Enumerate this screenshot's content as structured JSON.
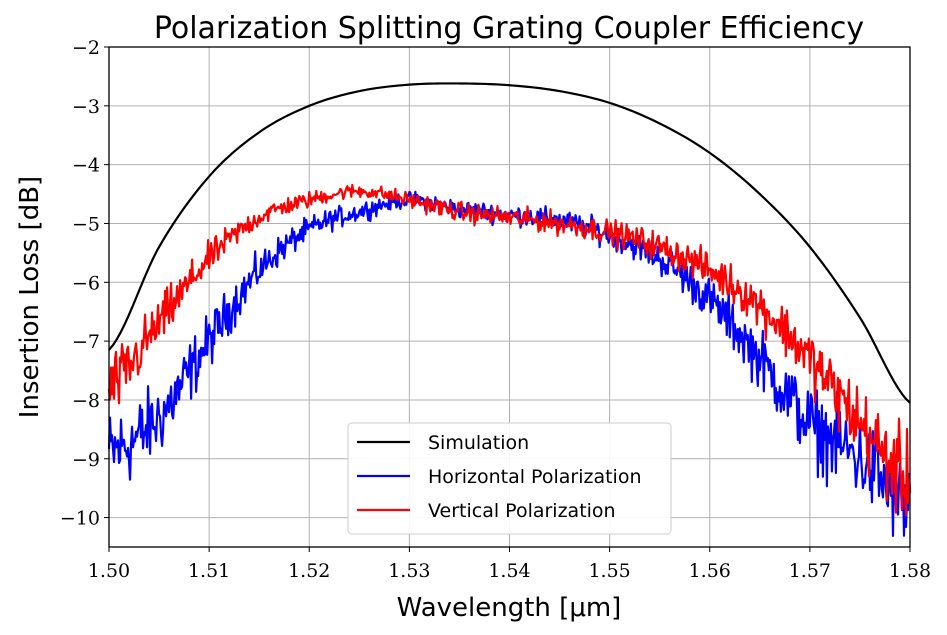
{
  "chart_data": {
    "type": "line",
    "title": "Polarization Splitting Grating Coupler Efficiency",
    "xlabel": "Wavelength [μm]",
    "ylabel": "Insertion Loss [dB]",
    "xlim": [
      1.5,
      1.58
    ],
    "ylim": [
      -10.5,
      -2
    ],
    "xticks": [
      1.5,
      1.51,
      1.52,
      1.53,
      1.54,
      1.55,
      1.56,
      1.57,
      1.58
    ],
    "xtick_labels": [
      "1.50",
      "1.51",
      "1.52",
      "1.53",
      "1.54",
      "1.55",
      "1.56",
      "1.57",
      "1.58"
    ],
    "yticks": [
      -2,
      -3,
      -4,
      -5,
      -6,
      -7,
      -8,
      -9,
      -10
    ],
    "ytick_labels": [
      "−2",
      "−3",
      "−4",
      "−5",
      "−6",
      "−7",
      "−8",
      "−9",
      "−10"
    ],
    "grid": true,
    "legend_position": "lower center",
    "series": [
      {
        "name": "Simulation",
        "color": "#000000",
        "x": [
          1.5,
          1.505,
          1.51,
          1.515,
          1.52,
          1.525,
          1.53,
          1.535,
          1.54,
          1.545,
          1.55,
          1.555,
          1.56,
          1.565,
          1.57,
          1.575,
          1.58
        ],
        "y": [
          -7.15,
          -5.4,
          -4.2,
          -3.45,
          -3.0,
          -2.75,
          -2.64,
          -2.62,
          -2.65,
          -2.75,
          -2.95,
          -3.3,
          -3.8,
          -4.5,
          -5.4,
          -6.6,
          -8.05
        ]
      },
      {
        "name": "Horizontal Polarization",
        "color": "#0000ff",
        "x": [
          1.5,
          1.505,
          1.51,
          1.515,
          1.52,
          1.525,
          1.53,
          1.535,
          1.54,
          1.545,
          1.55,
          1.555,
          1.56,
          1.565,
          1.57,
          1.575,
          1.58
        ],
        "y": [
          -8.9,
          -8.3,
          -7.0,
          -5.8,
          -5.1,
          -4.8,
          -4.6,
          -4.75,
          -4.85,
          -4.95,
          -5.2,
          -5.6,
          -6.3,
          -7.3,
          -8.4,
          -9.0,
          -9.8
        ]
      },
      {
        "name": "Vertical Polarization",
        "color": "#ff0000",
        "x": [
          1.5,
          1.505,
          1.51,
          1.515,
          1.52,
          1.525,
          1.53,
          1.535,
          1.54,
          1.545,
          1.55,
          1.555,
          1.56,
          1.565,
          1.57,
          1.575,
          1.58
        ],
        "y": [
          -7.8,
          -6.7,
          -5.6,
          -4.9,
          -4.6,
          -4.45,
          -4.6,
          -4.8,
          -4.9,
          -5.0,
          -5.15,
          -5.4,
          -5.8,
          -6.4,
          -7.3,
          -8.4,
          -9.4
        ]
      }
    ]
  }
}
